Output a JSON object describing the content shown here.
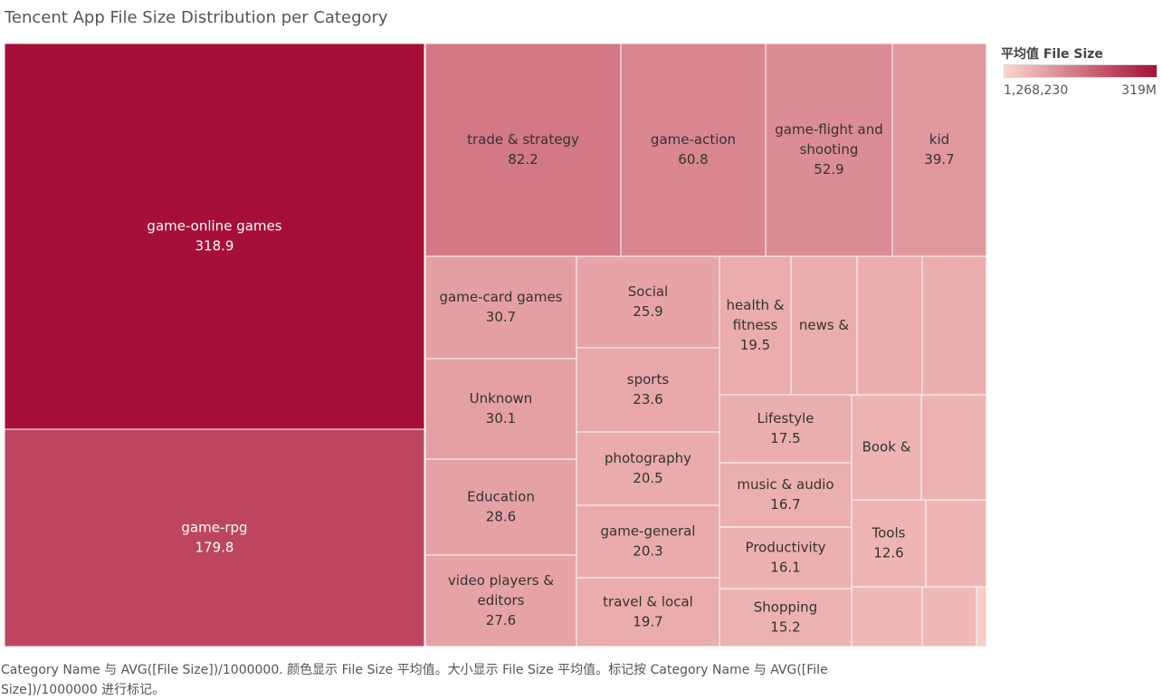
{
  "chart_data": {
    "type": "treemap",
    "title": "Tencent App File Size Distribution per Category",
    "color_legend": {
      "title": "平均值 File Size",
      "min_label": "1,268,230",
      "max_label": "319M",
      "min": 1.27,
      "max": 318.9,
      "color_low": "#fcd5cc",
      "color_high": "#a50f38"
    },
    "categories": [
      {
        "label": "game-online games",
        "value": 318.9,
        "value_text": "318.9"
      },
      {
        "label": "game-rpg",
        "value": 179.8,
        "value_text": "179.8"
      },
      {
        "label": "trade & strategy",
        "value": 82.2,
        "value_text": "82.2"
      },
      {
        "label": "game-action",
        "value": 60.8,
        "value_text": "60.8"
      },
      {
        "label": "game-flight and shooting",
        "value": 52.9,
        "value_text": "52.9"
      },
      {
        "label": "kid",
        "value": 39.7,
        "value_text": "39.7"
      },
      {
        "label": "game-card games",
        "value": 30.7,
        "value_text": "30.7"
      },
      {
        "label": "Unknown",
        "value": 30.1,
        "value_text": "30.1"
      },
      {
        "label": "Education",
        "value": 28.6,
        "value_text": "28.6"
      },
      {
        "label": "video players & editors",
        "value": 27.6,
        "value_text": "27.6"
      },
      {
        "label": "Social",
        "value": 25.9,
        "value_text": "25.9"
      },
      {
        "label": "sports",
        "value": 23.6,
        "value_text": "23.6"
      },
      {
        "label": "photography",
        "value": 20.5,
        "value_text": "20.5"
      },
      {
        "label": "game-general",
        "value": 20.3,
        "value_text": "20.3"
      },
      {
        "label": "travel & local",
        "value": 19.7,
        "value_text": "19.7"
      },
      {
        "label": "health & fitness",
        "value": 19.5,
        "value_text": "19.5"
      },
      {
        "label": "news &",
        "value": 18.6,
        "value_text": ""
      },
      {
        "label": "",
        "value": 17.8,
        "value_text": ""
      },
      {
        "label": "",
        "value": 17.6,
        "value_text": ""
      },
      {
        "label": "Lifestyle",
        "value": 17.5,
        "value_text": "17.5"
      },
      {
        "label": "music & audio",
        "value": 16.7,
        "value_text": "16.7"
      },
      {
        "label": "Productivity",
        "value": 16.1,
        "value_text": "16.1"
      },
      {
        "label": "Shopping",
        "value": 15.2,
        "value_text": "15.2"
      },
      {
        "label": "Book &",
        "value": 14.5,
        "value_text": ""
      },
      {
        "label": "",
        "value": 14.0,
        "value_text": ""
      },
      {
        "label": "Tools",
        "value": 12.6,
        "value_text": "12.6"
      },
      {
        "label": "",
        "value": 12.0,
        "value_text": ""
      },
      {
        "label": "",
        "value": 11.0,
        "value_text": ""
      },
      {
        "label": "",
        "value": 10.5,
        "value_text": ""
      },
      {
        "label": "",
        "value": 2.0,
        "value_text": ""
      }
    ]
  },
  "footnote": "Category Name 与 AVG([File Size])/1000000. 颜色显示 File Size 平均值。大小显示 File Size 平均值。标记按 Category Name 与 AVG([File Size])/1000000 进行标记。"
}
